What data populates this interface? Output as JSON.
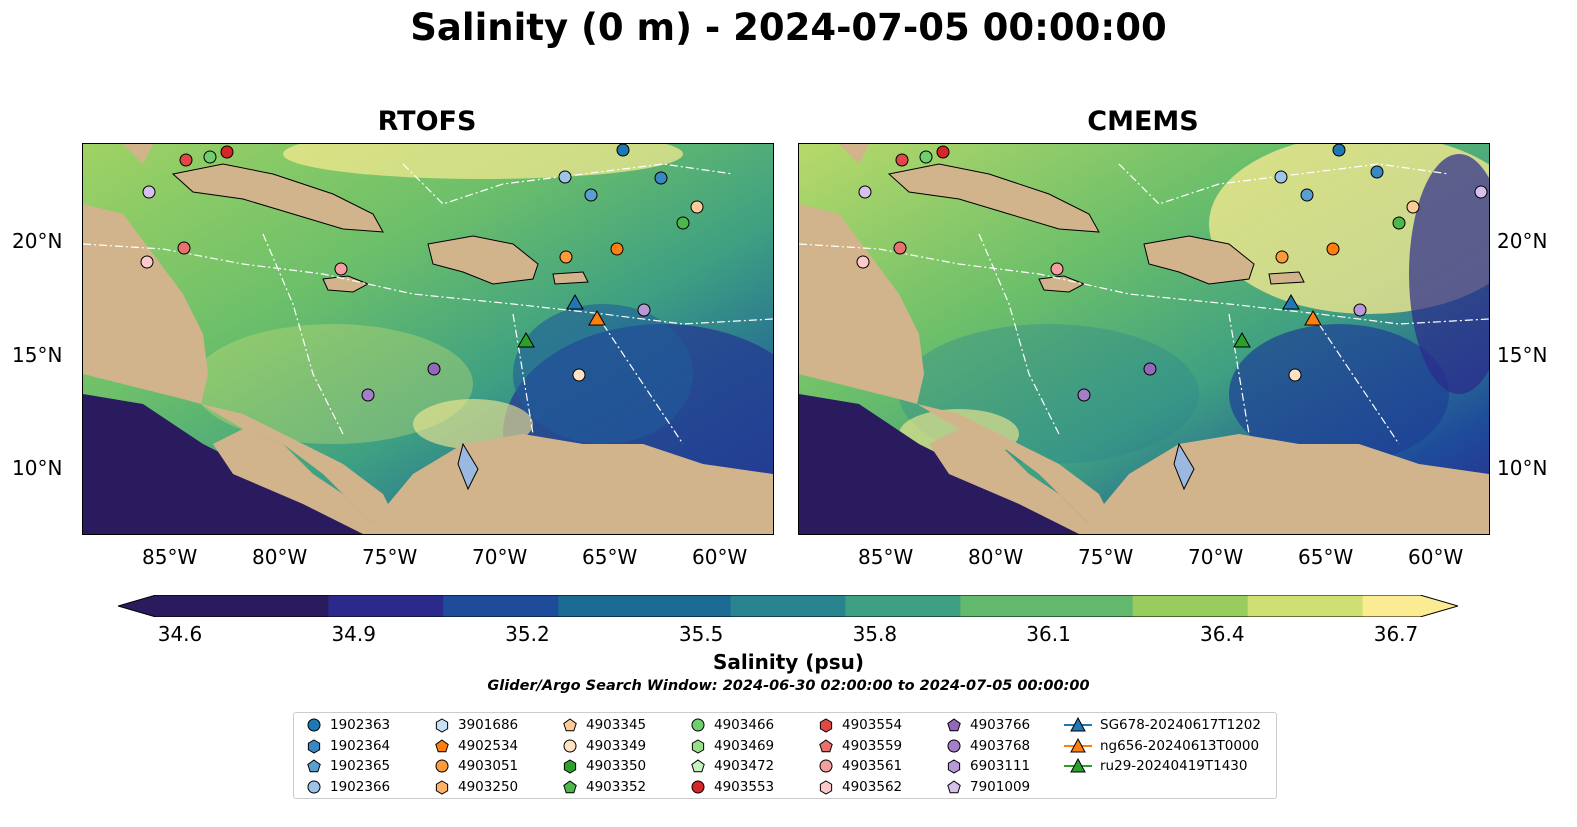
{
  "title": "Salinity (0 m) - 2024-07-05 00:00:00",
  "maps": [
    {
      "title": "RTOFS"
    },
    {
      "title": "CMEMS"
    }
  ],
  "axes": {
    "lon_ticks": [
      "85°W",
      "80°W",
      "75°W",
      "70°W",
      "65°W",
      "60°W"
    ],
    "lat_ticks": [
      "20°N",
      "15°N",
      "10°N"
    ]
  },
  "colorbar": {
    "label": "Salinity (psu)",
    "min": 34.6,
    "max": 36.7,
    "ticks": [
      "34.6",
      "34.9",
      "35.2",
      "35.5",
      "35.8",
      "36.1",
      "36.4",
      "36.7"
    ],
    "colormap": "haline",
    "colors": [
      "#2a1a5e",
      "#2b2a8c",
      "#1e4c9a",
      "#1a6a94",
      "#2a848f",
      "#3ea082",
      "#62b86d",
      "#98cc5f",
      "#d0df72",
      "#fbeb92"
    ]
  },
  "search_window": "Glider/Argo Search Window: 2024-06-30 02:00:00 to 2024-07-05 00:00:00",
  "legend": [
    {
      "label": "1902363",
      "marker": "circle",
      "color": "#1f77b4"
    },
    {
      "label": "1902364",
      "marker": "hexagon",
      "color": "#3a88c2"
    },
    {
      "label": "1902365",
      "marker": "pentagon",
      "color": "#5a9fd0"
    },
    {
      "label": "1902366",
      "marker": "circle",
      "color": "#9ec5e8"
    },
    {
      "label": "3901686",
      "marker": "hexagon",
      "color": "#c6e0f5"
    },
    {
      "label": "4902534",
      "marker": "pentagon",
      "color": "#ff7f0e"
    },
    {
      "label": "4903051",
      "marker": "circle",
      "color": "#ff9a3c"
    },
    {
      "label": "4903250",
      "marker": "hexagon",
      "color": "#ffb366"
    },
    {
      "label": "4903345",
      "marker": "pentagon",
      "color": "#ffcc99"
    },
    {
      "label": "4903349",
      "marker": "circle",
      "color": "#ffe2c4"
    },
    {
      "label": "4903350",
      "marker": "hexagon",
      "color": "#2ca02c"
    },
    {
      "label": "4903352",
      "marker": "pentagon",
      "color": "#4cb84c"
    },
    {
      "label": "4903466",
      "marker": "circle",
      "color": "#6fcf6f"
    },
    {
      "label": "4903469",
      "marker": "hexagon",
      "color": "#98df8a"
    },
    {
      "label": "4903472",
      "marker": "pentagon",
      "color": "#c8f0c0"
    },
    {
      "label": "4903553",
      "marker": "circle",
      "color": "#d62728"
    },
    {
      "label": "4903554",
      "marker": "hexagon",
      "color": "#e04848"
    },
    {
      "label": "4903559",
      "marker": "pentagon",
      "color": "#ea7070"
    },
    {
      "label": "4903561",
      "marker": "circle",
      "color": "#f4a0a0"
    },
    {
      "label": "4903562",
      "marker": "hexagon",
      "color": "#fccaca"
    },
    {
      "label": "4903766",
      "marker": "pentagon",
      "color": "#9467bd"
    },
    {
      "label": "4903768",
      "marker": "circle",
      "color": "#a47ec8"
    },
    {
      "label": "6903111",
      "marker": "hexagon",
      "color": "#b898d8"
    },
    {
      "label": "7901009",
      "marker": "pentagon",
      "color": "#d6c0ec"
    },
    {
      "label": "SG678-20240617T1202",
      "marker": "triangle-line",
      "color": "#1f77b4"
    },
    {
      "label": "ng656-20240613T0000",
      "marker": "triangle-line",
      "color": "#ff7f0e"
    },
    {
      "label": "ru29-20240419T1430",
      "marker": "triangle-line",
      "color": "#2ca02c"
    }
  ]
}
